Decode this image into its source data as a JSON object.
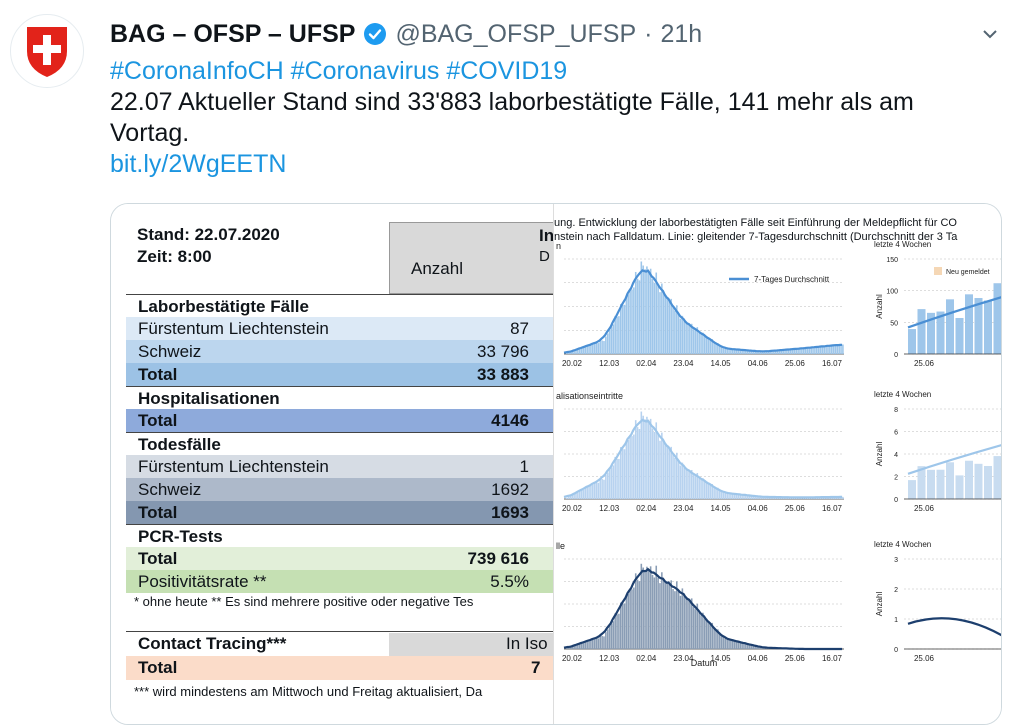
{
  "tweet": {
    "author_name": "BAG – OFSP – UFSP",
    "handle": "@BAG_OFSP_UFSP",
    "separator": "·",
    "time": "21h",
    "hashtags": [
      "#CoronaInfoCH",
      "#Coronavirus",
      "#COVID19"
    ],
    "text": "22.07 Aktueller Stand sind 33'883 laborbestätigte Fälle, 141 mehr als am Vortag.",
    "link": "bit.ly/2WgEETN"
  },
  "table": {
    "stand": "Stand: 22.07.2020",
    "zeit": "Zeit: 8:00",
    "header_anzahl": "Anzahl",
    "header_in": "In",
    "header_d": "D",
    "rows": [
      {
        "label": "Laborbestätigte Fälle",
        "value": "",
        "style": "section"
      },
      {
        "label": "Fürstentum Liechtenstein",
        "value": "87",
        "style": "lab1"
      },
      {
        "label": "Schweiz",
        "value": "33 796",
        "style": "lab2"
      },
      {
        "label": "Total",
        "value": "33 883",
        "style": "labt"
      },
      {
        "label": "Hospitalisationen",
        "value": "",
        "style": "section"
      },
      {
        "label": "Total",
        "value": "4146",
        "style": "hospt"
      },
      {
        "label": "Todesfälle",
        "value": "",
        "style": "section"
      },
      {
        "label": "Fürstentum Liechtenstein",
        "value": "1",
        "style": "tod1"
      },
      {
        "label": "Schweiz",
        "value": "1692",
        "style": "tod2"
      },
      {
        "label": "Total",
        "value": "1693",
        "style": "todt"
      },
      {
        "label": "PCR-Tests",
        "value": "",
        "style": "section"
      },
      {
        "label": "Total",
        "value": "739 616",
        "style": "pcrt"
      },
      {
        "label": "Positivitätsrate **",
        "value": "5.5%",
        "style": "pcrp"
      }
    ],
    "note1": "* ohne heute   ** Es sind mehrere positive oder negative Tes",
    "contact_label": "Contact Tracing***",
    "contact_header": "In Iso",
    "contact_total_label": "Total",
    "contact_total_value": "7",
    "note2": "*** wird mindestens am Mittwoch und Freitag aktualisiert, Da"
  },
  "charts": {
    "caption_line1": "ung. Entwicklung der laborbestätigten Fälle seit Einführung der Meldepflicht für CO",
    "caption_line2": "nstein nach Falldatum. Linie: gleitender 7-Tagesdurchschnitt (Durchschnitt der 3 Ta",
    "panel1_label": "n",
    "panel2_label": "alisationseintritte",
    "panel3_label": "lle",
    "legend_7day": "7-Tages Durchschnitt",
    "legend_neu": "Neu gemeldet",
    "last4_label": "letzte 4 Wochen",
    "x_ticks": [
      "20.02",
      "12.03",
      "02.04",
      "23.04",
      "14.05",
      "04.06",
      "25.06",
      "16.07"
    ],
    "x_label": "Datum",
    "small_x_tick": "25.06",
    "small_y_label": "Anzahl",
    "small1_y_ticks": [
      "150",
      "100",
      "50",
      "0"
    ],
    "small2_y_ticks": [
      "8",
      "6",
      "4",
      "2",
      "0"
    ],
    "small3_y_ticks": [
      "3",
      "2",
      "1",
      "0"
    ],
    "colors": {
      "light": "#9ec6ea",
      "mid": "#4a8fd4",
      "dark": "#1d3f6e",
      "pale": "#b7d2ef"
    }
  },
  "chart_data": [
    {
      "type": "bar",
      "title": "",
      "categories": [
        "20.02",
        "12.03",
        "02.04",
        "23.04",
        "14.05",
        "04.06",
        "25.06",
        "16.07"
      ],
      "series": [
        {
          "name": "7-Tages Durchschnitt",
          "values": [
            0,
            150,
            950,
            350,
            60,
            25,
            60,
            100
          ]
        }
      ]
    },
    {
      "type": "bar",
      "title": "",
      "categories": [
        "20.02",
        "12.03",
        "02.04",
        "23.04",
        "14.05",
        "04.06",
        "25.06",
        "16.07"
      ],
      "series": [
        {
          "name": "",
          "values": [
            0,
            40,
            160,
            60,
            12,
            4,
            3,
            4
          ]
        }
      ]
    },
    {
      "type": "bar",
      "title": "",
      "categories": [
        "20.02",
        "12.03",
        "02.04",
        "23.04",
        "14.05",
        "04.06",
        "25.06",
        "16.07"
      ],
      "series": [
        {
          "name": "",
          "values": [
            0,
            10,
            60,
            40,
            8,
            1,
            0,
            0
          ]
        }
      ]
    }
  ]
}
